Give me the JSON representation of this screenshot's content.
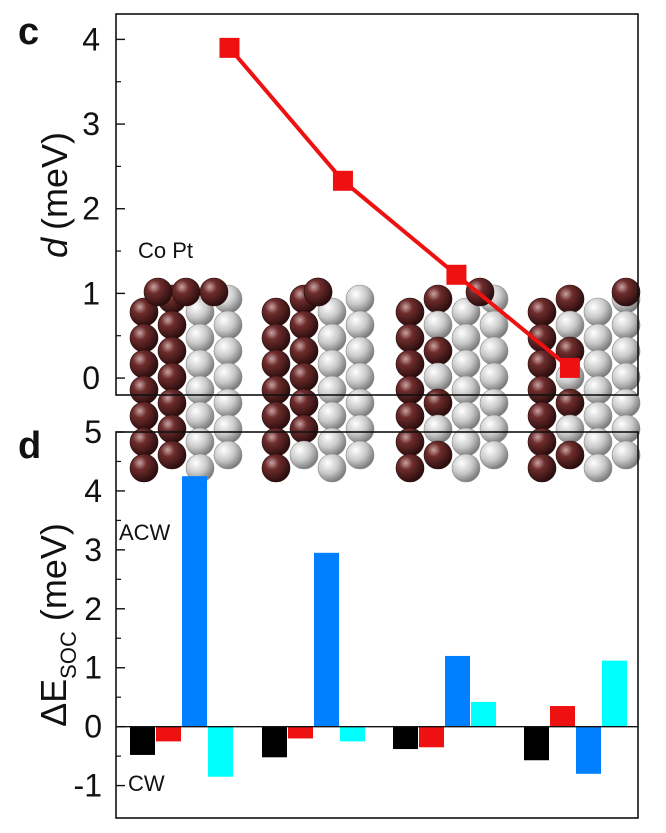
{
  "chart_data": [
    {
      "panel": "c",
      "type": "line",
      "x": [
        1,
        2,
        3,
        4
      ],
      "series": [
        {
          "values": [
            3.9,
            2.33,
            1.22,
            0.12
          ],
          "color": "#ee1111",
          "marker": "square"
        }
      ],
      "ylabel_symbol": "d",
      "ylabel_unit": "(meV)",
      "yticks": [
        "0",
        "1",
        "2",
        "3",
        "4"
      ],
      "ylim": [
        -0.2,
        4.3
      ],
      "xlim": [
        0,
        4.6
      ],
      "grid": false,
      "legend": null,
      "annotations": [
        "Co Pt"
      ],
      "inset": "atomic-structure images of Co (dark) and Pt (light) layers, four configurations"
    },
    {
      "panel": "d",
      "type": "bar",
      "categories": [
        "1",
        "2",
        "3",
        "4"
      ],
      "series": [
        {
          "color": "#000000",
          "values": [
            -0.48,
            -0.52,
            -0.38,
            -0.57
          ]
        },
        {
          "color": "#ee1111",
          "values": [
            -0.25,
            -0.2,
            -0.35,
            0.35
          ]
        },
        {
          "color": "#0080ff",
          "values": [
            4.25,
            2.95,
            1.2,
            -0.8
          ]
        },
        {
          "color": "#00ffff",
          "values": [
            -0.85,
            -0.25,
            0.42,
            1.12
          ]
        }
      ],
      "ylabel_prefix": "ΔE",
      "ylabel_subscript": "SOC",
      "ylabel_unit": "(meV)",
      "yticks": [
        "-1",
        "0",
        "1",
        "2",
        "3",
        "4",
        "5"
      ],
      "ylim": [
        -1.55,
        5
      ],
      "grid": false,
      "legend": null,
      "annotations": [
        "ACW",
        "CW"
      ]
    }
  ],
  "labels": {
    "panel_c": "c",
    "panel_d": "d",
    "co_pt": "Co Pt",
    "acw": "ACW",
    "cw": "CW"
  }
}
